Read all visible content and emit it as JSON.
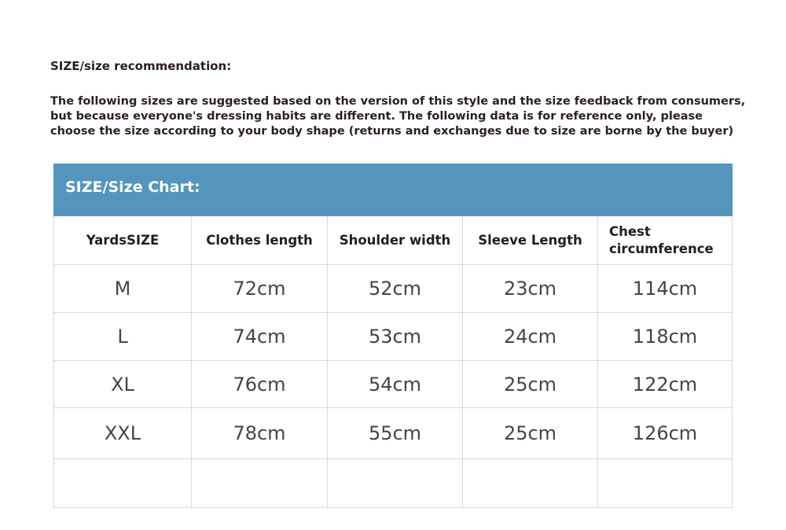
{
  "title": "SIZE/size recommendation:",
  "description": "The following sizes are suggested based on the version of this style and the size feedback from consumers,\nbut because everyone's dressing habits are different. The following data is for reference only, please\nchoose the size according to your body shape (returns and exchanges due to size are borne by the buyer)",
  "table": {
    "heading": "SIZE/Size Chart:",
    "headers": [
      "YardsSIZE",
      "Clothes length",
      "Shoulder width",
      "Sleeve Length",
      "Chest circumference"
    ],
    "header_color": "#5595bd",
    "rows": [
      [
        "M",
        "72cm",
        "52cm",
        "23cm",
        "114cm"
      ],
      [
        "L",
        "74cm",
        "53cm",
        "24cm",
        "118cm"
      ],
      [
        "XL",
        "76cm",
        "54cm",
        "25cm",
        "122cm"
      ],
      [
        "XXL",
        "78cm",
        "55cm",
        "25cm",
        "126cm"
      ],
      [
        "",
        "",
        "",
        "",
        ""
      ]
    ]
  }
}
